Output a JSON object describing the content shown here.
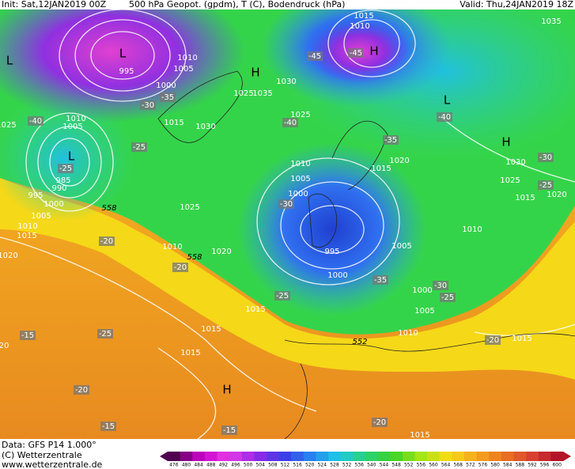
{
  "header": {
    "init": "Init: Sat,12JAN2019 00Z",
    "description": "500 hPa Geopot. (gpdm), T (C), Bodendruck (hPa)",
    "valid": "Valid: Thu,24JAN2019 18Z"
  },
  "pressure_labels": [
    "1015",
    "1010",
    "1035",
    "1010",
    "995",
    "1005",
    "1000",
    "1030",
    "1025",
    "1035",
    "1025",
    "1015",
    "1030",
    "1010",
    "1005",
    "1025",
    "1020",
    "1015",
    "1030",
    "1025",
    "1015",
    "1020",
    "1010",
    "1005",
    "1000",
    "985",
    "990",
    "995",
    "1000",
    "1005",
    "1010",
    "1015",
    "1020",
    "1025",
    "1010",
    "1020",
    "1010",
    "1005",
    "995",
    "1000",
    "1000",
    "1005",
    "1015",
    "1010",
    "1015",
    "1015",
    "1015",
    "1015",
    "20"
  ],
  "temperature_labels": [
    "-45",
    "-45",
    "-35",
    "-30",
    "-40",
    "-40",
    "-40",
    "-25",
    "-35",
    "-30",
    "-25",
    "-25",
    "-30",
    "-20",
    "-20",
    "-25",
    "-35",
    "-30",
    "-25",
    "-15",
    "-25",
    "-20",
    "-20",
    "-20",
    "-15",
    "-15"
  ],
  "height_labels": [
    "558",
    "558",
    "552"
  ],
  "pressure_centers": [
    "L",
    "L",
    "H",
    "H",
    "L",
    "H",
    "L",
    "H"
  ],
  "footer": {
    "data": "Data: GFS P14 1.000°",
    "copyright": "(C) Wetterzentrale",
    "url": "www.wetterzentrale.de"
  },
  "scale_labels": [
    476,
    480,
    484,
    488,
    492,
    496,
    500,
    504,
    508,
    512,
    516,
    520,
    524,
    528,
    532,
    536,
    540,
    544,
    548,
    552,
    556,
    560,
    564,
    568,
    572,
    576,
    580,
    584,
    588,
    592,
    596,
    600
  ]
}
